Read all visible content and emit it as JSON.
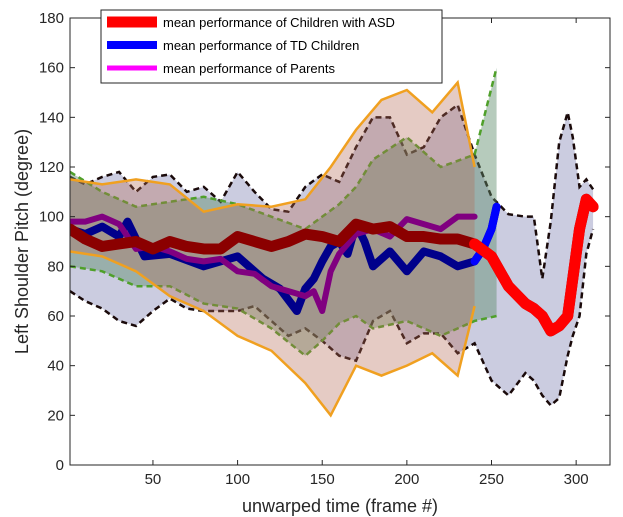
{
  "chart_data": {
    "type": "line",
    "xlabel": "unwarped time (frame #)",
    "ylabel": "Left Shoulder Pitch (degree)",
    "xlim": [
      1,
      320
    ],
    "ylim": [
      0,
      180
    ],
    "xticks": [
      50,
      100,
      150,
      200,
      250,
      300
    ],
    "yticks": [
      0,
      20,
      40,
      60,
      80,
      100,
      120,
      140,
      160,
      180
    ],
    "grid": false,
    "legend_position": "top-left",
    "series": [
      {
        "name": "mean performance of Children with ASD",
        "color": "#ff0000",
        "line_color": "#8b0000",
        "x": [
          1,
          10,
          20,
          30,
          40,
          50,
          60,
          70,
          80,
          90,
          100,
          110,
          120,
          130,
          140,
          150,
          160,
          170,
          180,
          190,
          200,
          210,
          220,
          230,
          240,
          250,
          260,
          270,
          275,
          280,
          285,
          290,
          295,
          298,
          302,
          306,
          310
        ],
        "y": [
          95,
          91,
          88,
          89,
          90,
          87,
          90,
          88,
          87,
          87,
          92,
          90,
          88,
          90,
          93,
          92,
          90,
          97,
          95,
          96,
          92,
          92,
          91,
          91,
          89,
          84,
          72,
          65,
          63,
          60,
          54,
          56,
          60,
          75,
          95,
          107,
          104
        ],
        "band": {
          "x": [
            1,
            10,
            20,
            30,
            40,
            50,
            60,
            70,
            80,
            90,
            100,
            110,
            120,
            130,
            140,
            150,
            160,
            170,
            180,
            190,
            200,
            210,
            220,
            230,
            240,
            250,
            260,
            270,
            275,
            280,
            285,
            290,
            295,
            298,
            302,
            306,
            310
          ],
          "upper": [
            116,
            113,
            116,
            118,
            110,
            116,
            117,
            110,
            112,
            106,
            118,
            110,
            103,
            102,
            112,
            117,
            114,
            128,
            140,
            140,
            125,
            128,
            140,
            145,
            125,
            108,
            101,
            100,
            100,
            75,
            98,
            130,
            142,
            132,
            112,
            115,
            111
          ],
          "lower": [
            70,
            66,
            63,
            58,
            56,
            62,
            67,
            63,
            62,
            62,
            62,
            64,
            58,
            52,
            55,
            50,
            44,
            42,
            58,
            62,
            49,
            53,
            53,
            45,
            49,
            34,
            28,
            37,
            34,
            28,
            24,
            27,
            44,
            52,
            60,
            85,
            95
          ]
        }
      },
      {
        "name": "mean performance of TD Children",
        "color": "#0000ff",
        "line_color": "#00008b",
        "x": [
          1,
          10,
          20,
          30,
          35,
          45,
          60,
          80,
          100,
          115,
          125,
          135,
          140,
          145,
          150,
          155,
          160,
          165,
          170,
          175,
          180,
          190,
          200,
          210,
          220,
          230,
          240,
          245,
          250,
          253
        ],
        "y": [
          95,
          93,
          96,
          92,
          98,
          84,
          85,
          80,
          84,
          75,
          71,
          62,
          71,
          75,
          82,
          88,
          90,
          85,
          97,
          90,
          80,
          86,
          78,
          86,
          84,
          80,
          82,
          87,
          95,
          104
        ],
        "band": {
          "x": [
            1,
            20,
            40,
            60,
            80,
            100,
            120,
            140,
            150,
            160,
            170,
            180,
            200,
            220,
            240,
            253
          ],
          "upper": [
            118,
            110,
            104,
            106,
            108,
            105,
            100,
            95,
            100,
            105,
            112,
            123,
            132,
            120,
            125,
            160
          ],
          "lower": [
            80,
            78,
            72,
            72,
            65,
            63,
            55,
            44,
            50,
            57,
            60,
            55,
            58,
            52,
            58,
            60
          ]
        }
      },
      {
        "name": "mean performance of Parents",
        "color": "#ff00ff",
        "line_color": "#800080",
        "x": [
          1,
          10,
          20,
          30,
          40,
          50,
          60,
          70,
          80,
          90,
          100,
          110,
          120,
          130,
          140,
          145,
          150,
          155,
          160,
          170,
          180,
          190,
          200,
          210,
          220,
          230,
          240
        ],
        "y": [
          98,
          98,
          100,
          97,
          87,
          88,
          86,
          83,
          82,
          83,
          78,
          77,
          72,
          70,
          68,
          70,
          62,
          78,
          85,
          93,
          95,
          92,
          99,
          97,
          95,
          100,
          100
        ],
        "band": {
          "x": [
            1,
            20,
            40,
            60,
            80,
            100,
            120,
            140,
            155,
            170,
            185,
            200,
            215,
            230,
            240
          ],
          "upper": [
            115,
            113,
            115,
            113,
            102,
            105,
            104,
            107,
            120,
            135,
            147,
            151,
            142,
            154,
            120
          ],
          "lower": [
            86,
            84,
            78,
            68,
            62,
            52,
            46,
            33,
            20,
            40,
            36,
            40,
            45,
            36,
            64
          ]
        }
      }
    ]
  }
}
